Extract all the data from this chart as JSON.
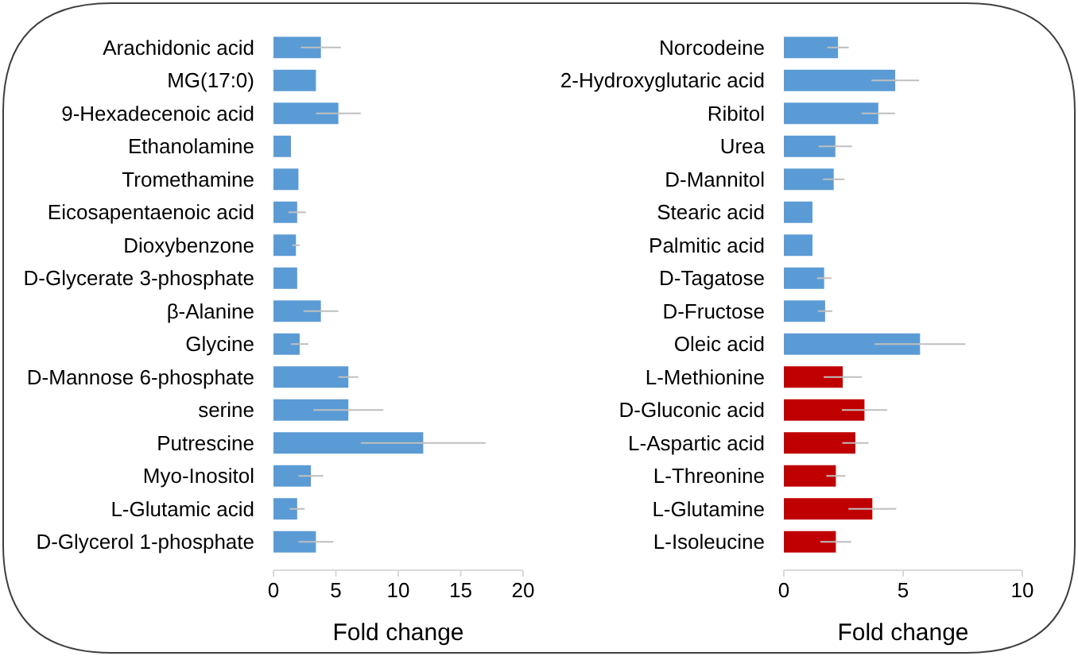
{
  "chart_data": [
    {
      "type": "bar",
      "orientation": "horizontal",
      "xlabel": "Fold change",
      "categories": [
        "Arachidonic acid",
        "MG(17:0)",
        "9-Hexadecenoic acid",
        "Ethanolamine",
        "Tromethamine",
        "Eicosapentaenoic acid",
        "Dioxybenzone",
        "D-Glycerate 3-phosphate",
        "β-Alanine",
        "Glycine",
        "D-Mannose 6-phosphate",
        "serine",
        "Putrescine",
        "Myo-Inositol",
        "L-Glutamic acid",
        "D-Glycerol 1-phosphate"
      ],
      "values": [
        3.8,
        3.4,
        5.2,
        1.4,
        2.0,
        1.9,
        1.8,
        1.9,
        3.8,
        2.1,
        6.0,
        6.0,
        12.0,
        3.0,
        1.9,
        3.4
      ],
      "errors": [
        1.6,
        null,
        1.8,
        null,
        null,
        0.7,
        0.3,
        null,
        1.4,
        0.7,
        0.8,
        2.8,
        5.0,
        1.0,
        0.6,
        1.4
      ],
      "color": "#5b9bd5",
      "xlim": [
        0,
        20
      ],
      "xticks": [
        0,
        5,
        10,
        15,
        20
      ]
    },
    {
      "type": "bar",
      "orientation": "horizontal",
      "xlabel": "Fold change",
      "categories": [
        "Norcodeine",
        "2-Hydroxyglutaric acid",
        "Ribitol",
        "Urea",
        "D-Mannitol",
        "Stearic acid",
        "Palmitic acid",
        "D-Tagatose",
        "D-Fructose",
        "Oleic acid",
        "L-Methionine",
        "D-Gluconic acid",
        "L-Aspartic acid",
        "L-Threonine",
        "L-Glutamine",
        "L-Isoleucine"
      ],
      "values": [
        2.27,
        4.67,
        3.96,
        2.16,
        2.09,
        1.2,
        1.2,
        1.69,
        1.73,
        5.71,
        2.47,
        3.38,
        3.0,
        2.18,
        3.71,
        2.18
      ],
      "errors": [
        0.45,
        1.0,
        0.7,
        0.7,
        0.45,
        null,
        null,
        0.3,
        0.3,
        1.9,
        0.8,
        0.95,
        0.55,
        0.4,
        1.0,
        0.65
      ],
      "colors": [
        "#5b9bd5",
        "#5b9bd5",
        "#5b9bd5",
        "#5b9bd5",
        "#5b9bd5",
        "#5b9bd5",
        "#5b9bd5",
        "#5b9bd5",
        "#5b9bd5",
        "#5b9bd5",
        "#c00000",
        "#c00000",
        "#c00000",
        "#c00000",
        "#c00000",
        "#c00000"
      ],
      "xlim": [
        0,
        10
      ],
      "xticks": [
        0,
        5,
        10
      ]
    }
  ]
}
